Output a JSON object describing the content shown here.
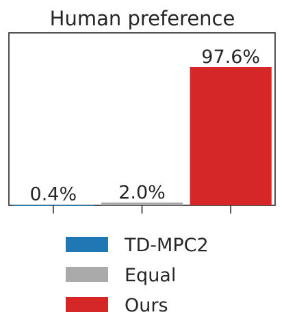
{
  "chart_data": {
    "type": "bar",
    "title": "Human preference",
    "categories": [
      "TD-MPC2",
      "Equal",
      "Ours"
    ],
    "values": [
      0.4,
      2.0,
      97.6
    ],
    "value_labels": [
      "0.4%",
      "2.0%",
      "97.6%"
    ],
    "colors": [
      "#1f77b4",
      "#aaaaaa",
      "#d62728"
    ],
    "ylim": [
      0,
      100
    ],
    "grid": false,
    "legend": {
      "placement": "bottom",
      "entries": [
        "TD-MPC2",
        "Equal",
        "Ours"
      ]
    },
    "xlabel": "",
    "ylabel": ""
  }
}
